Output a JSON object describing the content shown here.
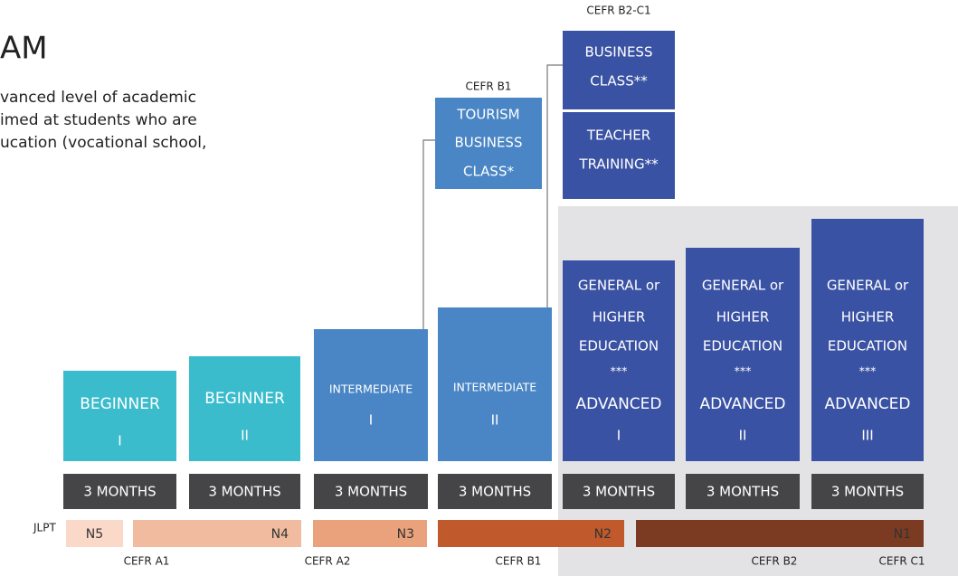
{
  "header": {
    "title": "AM"
  },
  "intro": {
    "lines": [
      "vanced level of academic",
      "imed at students who are",
      "ucation (vocational school,"
    ]
  },
  "top_boxes": [
    {
      "level": "CEFR B1",
      "lines": [
        "TOURISM",
        "BUSINESS",
        "CLASS*"
      ]
    },
    {
      "level": "CEFR B2-C1",
      "lines": [
        "BUSINESS",
        "CLASS**"
      ]
    },
    {
      "lines": [
        "TEACHER",
        "TRAINING**"
      ]
    }
  ],
  "courses": [
    {
      "lines": [
        "BEGINNER",
        "I"
      ]
    },
    {
      "lines": [
        "BEGINNER",
        "II"
      ]
    },
    {
      "lines": [
        "INTERMEDIATE",
        "I"
      ]
    },
    {
      "lines": [
        "INTERMEDIATE",
        "II"
      ]
    },
    {
      "lines": [
        "GENERAL or",
        "HIGHER",
        "EDUCATION",
        "***",
        "ADVANCED",
        "I"
      ]
    },
    {
      "lines": [
        "GENERAL or",
        "HIGHER",
        "EDUCATION",
        "***",
        "ADVANCED",
        "II"
      ]
    },
    {
      "lines": [
        "GENERAL or",
        "HIGHER",
        "EDUCATION",
        "***",
        "ADVANCED",
        "III"
      ]
    }
  ],
  "durations": [
    "3 MONTHS",
    "3 MONTHS",
    "3 MONTHS",
    "3 MONTHS",
    "3 MONTHS",
    "3 MONTHS",
    "3 MONTHS"
  ],
  "jlpt": {
    "label": "JLPT",
    "levels": [
      "N5",
      "N4",
      "N3",
      "N2",
      "N1"
    ]
  },
  "cefr": [
    "CEFR A1",
    "CEFR A2",
    "CEFR B1",
    "CEFR B2",
    "CEFR C1"
  ]
}
